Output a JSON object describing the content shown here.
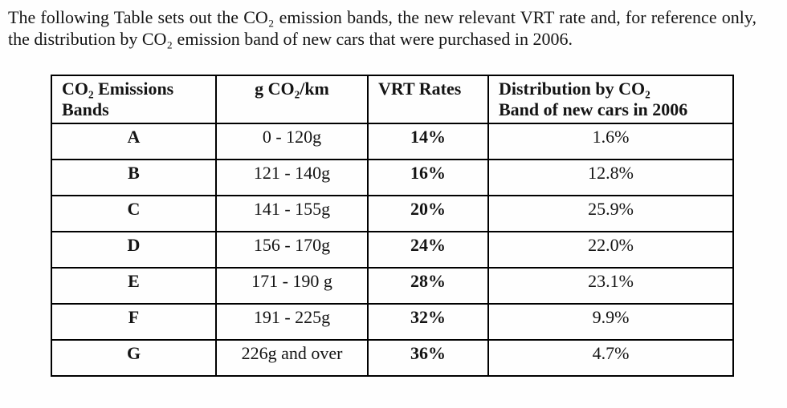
{
  "colors": {
    "background": "#fefefe",
    "text": "#141414",
    "table_border": "#000000"
  },
  "intro": {
    "text": "The following Table sets out the CO₂ emission bands, the new relevant VRT rate and, for reference only, the distribution by CO₂ emission band of new cars that were purchased in 2006."
  },
  "table": {
    "headers": [
      "CO₂ Emissions\nBands",
      "g CO₂/km",
      "VRT Rates",
      "Distribution by CO₂\nBand of new cars in 2006"
    ],
    "rows": [
      {
        "band": "A",
        "range": "0 - 120g",
        "vrt_rate": "14%",
        "distribution": "1.6%"
      },
      {
        "band": "B",
        "range": "121 - 140g",
        "vrt_rate": "16%",
        "distribution": "12.8%"
      },
      {
        "band": "C",
        "range": "141 - 155g",
        "vrt_rate": "20%",
        "distribution": "25.9%"
      },
      {
        "band": "D",
        "range": "156 - 170g",
        "vrt_rate": "24%",
        "distribution": "22.0%"
      },
      {
        "band": "E",
        "range": "171 - 190 g",
        "vrt_rate": "28%",
        "distribution": "23.1%"
      },
      {
        "band": "F",
        "range": "191 - 225g",
        "vrt_rate": "32%",
        "distribution": "9.9%"
      },
      {
        "band": "G",
        "range": "226g and over",
        "vrt_rate": "36%",
        "distribution": "4.7%"
      }
    ]
  }
}
